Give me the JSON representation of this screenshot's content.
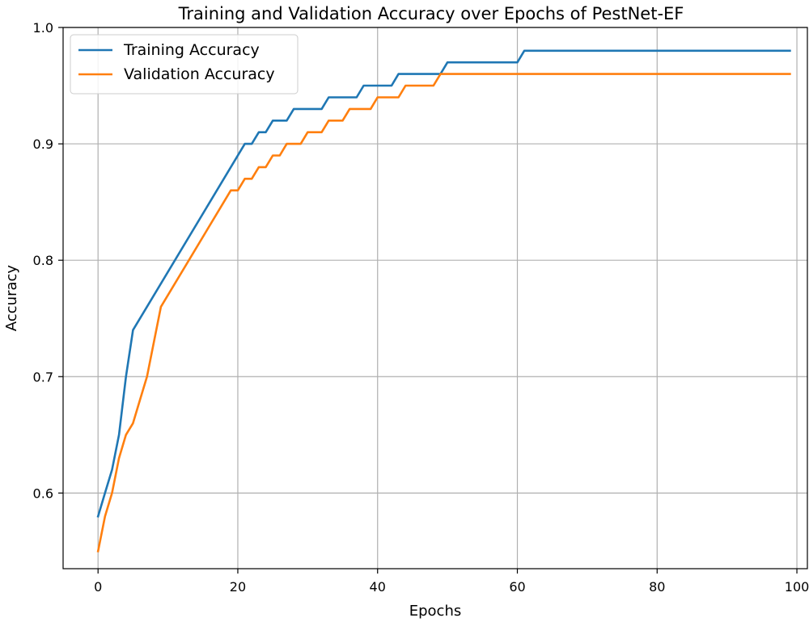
{
  "chart_data": {
    "type": "line",
    "title": "Training and Validation Accuracy over Epochs of PestNet-EF",
    "xlabel": "Epochs",
    "ylabel": "Accuracy",
    "xlim": [
      -5,
      101.5
    ],
    "ylim": [
      0.535,
      1.0
    ],
    "xticks": [
      0,
      20,
      40,
      60,
      80,
      100
    ],
    "yticks": [
      0.6,
      0.7,
      0.8,
      0.9,
      1.0
    ],
    "grid": true,
    "legend_position": "top-left",
    "series": [
      {
        "name": "Training Accuracy",
        "color": "#1f77b4",
        "x": [
          0,
          1,
          2,
          3,
          4,
          5,
          21,
          22,
          23,
          24,
          25,
          26,
          27,
          28,
          32,
          33,
          37,
          38,
          42,
          43,
          49,
          50,
          60,
          61,
          99
        ],
        "y": [
          0.58,
          0.6,
          0.62,
          0.65,
          0.7,
          0.74,
          0.9,
          0.9,
          0.91,
          0.91,
          0.92,
          0.92,
          0.92,
          0.93,
          0.93,
          0.94,
          0.94,
          0.95,
          0.95,
          0.96,
          0.96,
          0.97,
          0.97,
          0.98,
          0.98
        ]
      },
      {
        "name": "Validation Accuracy",
        "color": "#ff7f0e",
        "x": [
          0,
          1,
          2,
          3,
          4,
          5,
          6,
          7,
          8,
          9,
          19,
          20,
          21,
          22,
          23,
          24,
          25,
          26,
          27,
          28,
          29,
          30,
          31,
          32,
          33,
          34,
          35,
          36,
          37,
          38,
          39,
          40,
          41,
          42,
          43,
          44,
          48,
          49,
          99
        ],
        "y": [
          0.55,
          0.58,
          0.6,
          0.63,
          0.65,
          0.66,
          0.68,
          0.7,
          0.73,
          0.76,
          0.86,
          0.86,
          0.87,
          0.87,
          0.88,
          0.88,
          0.89,
          0.89,
          0.9,
          0.9,
          0.9,
          0.91,
          0.91,
          0.91,
          0.92,
          0.92,
          0.92,
          0.93,
          0.93,
          0.93,
          0.93,
          0.94,
          0.94,
          0.94,
          0.94,
          0.95,
          0.95,
          0.96,
          0.96
        ]
      }
    ]
  }
}
